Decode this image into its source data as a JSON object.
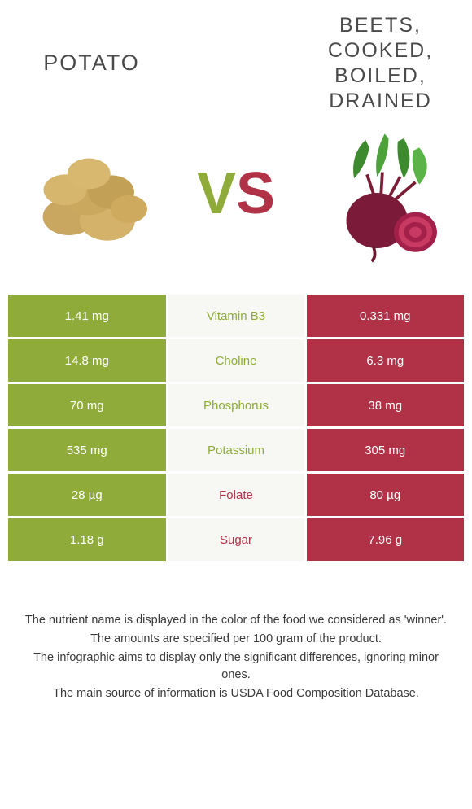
{
  "colors": {
    "potato": "#8fac3a",
    "beet": "#b13246",
    "mid_bg": "#f7f7f4",
    "text_dark": "#4a4a4a"
  },
  "left": {
    "title": "POTATO"
  },
  "right": {
    "title": "BEETS,\nCOOKED,\nBOILED,\nDRAINED"
  },
  "vs": {
    "v": "V",
    "s": "S"
  },
  "rows": [
    {
      "nutrient": "Vitamin B3",
      "left": "1.41 mg",
      "right": "0.331 mg",
      "winner": "left"
    },
    {
      "nutrient": "Choline",
      "left": "14.8 mg",
      "right": "6.3 mg",
      "winner": "left"
    },
    {
      "nutrient": "Phosphorus",
      "left": "70 mg",
      "right": "38 mg",
      "winner": "left"
    },
    {
      "nutrient": "Potassium",
      "left": "535 mg",
      "right": "305 mg",
      "winner": "left"
    },
    {
      "nutrient": "Folate",
      "left": "28 µg",
      "right": "80 µg",
      "winner": "right"
    },
    {
      "nutrient": "Sugar",
      "left": "1.18 g",
      "right": "7.96 g",
      "winner": "right"
    }
  ],
  "footer": [
    "The nutrient name is displayed in the color of the food we considered as 'winner'.",
    "The amounts are specified per 100 gram of the product.",
    "The infographic aims to display only the significant differences, ignoring minor ones.",
    "The main source of information is USDA Food Composition Database."
  ]
}
